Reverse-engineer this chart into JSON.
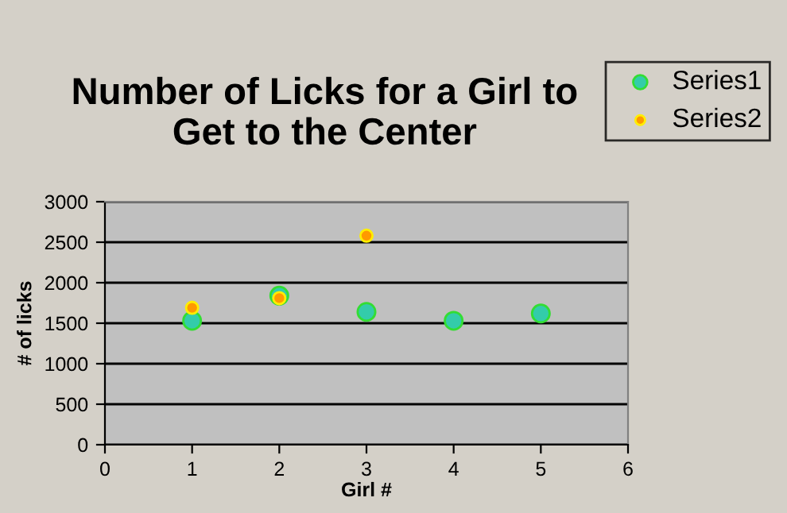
{
  "chart_data": {
    "type": "scatter",
    "title": "Number of Licks for a Girl to\nGet to the Center",
    "xlabel": "Girl #",
    "ylabel": "# of licks",
    "xlim": [
      0,
      6
    ],
    "xticks": [
      0,
      1,
      2,
      3,
      4,
      5,
      6
    ],
    "ylim": [
      0,
      3000
    ],
    "yticks": [
      0,
      500,
      1000,
      1500,
      2000,
      2500,
      3000
    ],
    "grid": "y",
    "legend": "top right",
    "marker": "circle",
    "series": [
      {
        "name": "Series1",
        "color": "#33ccaa",
        "x": [
          1,
          2,
          3,
          4,
          5
        ],
        "values": [
          1530,
          1840,
          1640,
          1530,
          1620
        ]
      },
      {
        "name": "Series2",
        "color": "#ff9900",
        "x": [
          1,
          2,
          3
        ],
        "values": [
          1690,
          1810,
          2580
        ]
      }
    ]
  }
}
